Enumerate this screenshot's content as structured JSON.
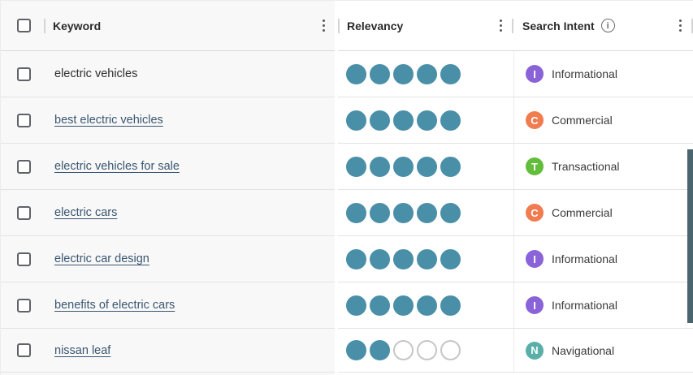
{
  "header": {
    "keyword_label": "Keyword",
    "relevancy_label": "Relevancy",
    "search_intent_label": "Search Intent",
    "info_glyph": "i"
  },
  "relevancy_scale_max": 5,
  "rows": [
    {
      "keyword": "electric vehicles",
      "link": false,
      "relevancy": 5,
      "intent": "Informational",
      "intent_letter": "I",
      "intent_color": "#8a63d9"
    },
    {
      "keyword": "best electric vehicles",
      "link": true,
      "relevancy": 5,
      "intent": "Commercial",
      "intent_letter": "C",
      "intent_color": "#f07c50"
    },
    {
      "keyword": "electric vehicles for sale",
      "link": true,
      "relevancy": 5,
      "intent": "Transactional",
      "intent_letter": "T",
      "intent_color": "#62bd3a"
    },
    {
      "keyword": "electric cars",
      "link": true,
      "relevancy": 5,
      "intent": "Commercial",
      "intent_letter": "C",
      "intent_color": "#f07c50"
    },
    {
      "keyword": "electric car design",
      "link": true,
      "relevancy": 5,
      "intent": "Informational",
      "intent_letter": "I",
      "intent_color": "#8a63d9"
    },
    {
      "keyword": "benefits of electric cars",
      "link": true,
      "relevancy": 5,
      "intent": "Informational",
      "intent_letter": "I",
      "intent_color": "#8a63d9"
    },
    {
      "keyword": "nissan leaf",
      "link": true,
      "relevancy": 2,
      "intent": "Navigational",
      "intent_letter": "N",
      "intent_color": "#5bafa9"
    }
  ],
  "colors": {
    "relevancy_filled": "#4a8fa8",
    "relevancy_empty_border": "#c6c6c6",
    "keyword_link": "#3a5670",
    "scrollbar": "#4a656e",
    "intent_informational": "#8a63d9",
    "intent_commercial": "#f07c50",
    "intent_transactional": "#62bd3a",
    "intent_navigational": "#5bafa9"
  }
}
